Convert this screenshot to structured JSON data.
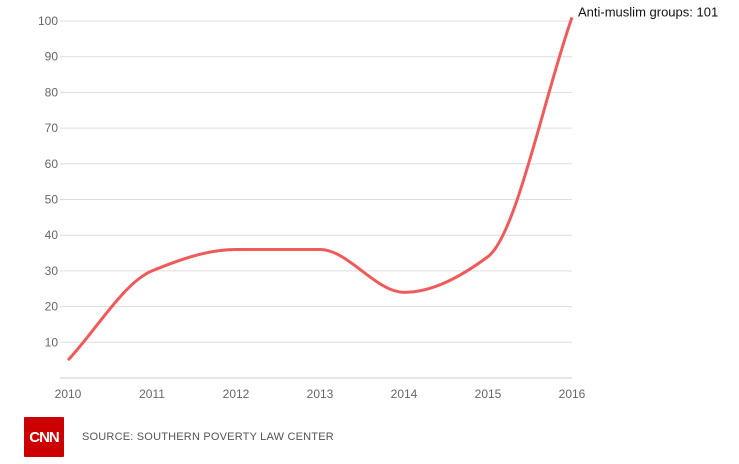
{
  "chart_data": {
    "type": "line",
    "title": "",
    "xlabel": "",
    "ylabel": "",
    "x": [
      "2010",
      "2011",
      "2012",
      "2013",
      "2014",
      "2015",
      "2016"
    ],
    "series": [
      {
        "values": [
          5,
          30,
          36,
          36,
          24,
          34,
          101
        ],
        "color": "#ef5b5b"
      }
    ],
    "yticks": [
      10,
      20,
      30,
      40,
      50,
      60,
      70,
      80,
      90,
      100
    ],
    "ylim": [
      0,
      100
    ],
    "grid": true,
    "annotation": {
      "text": "Anti-muslim groups: 101",
      "series_index": 0,
      "point_index": 6
    }
  },
  "footer": {
    "logo_text": "CNN",
    "source": "SOURCE: SOUTHERN POVERTY LAW CENTER"
  }
}
